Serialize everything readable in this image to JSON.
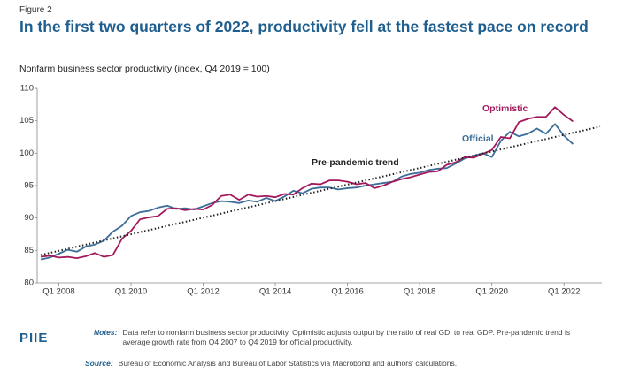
{
  "figure_label": "Figure 2",
  "notes_label": "Notes:",
  "notes": "Data refer to nonfarm business sector productivity. Optimistic adjusts output by the ratio of real GDI to real GDP. Pre-pandemic trend is average growth rate from Q4 2007 to Q4 2019 for official productivity.",
  "source_label": "Source:",
  "source": "Bureau of Economic Analysis and Bureau of Labor Statistics via Macrobond and authors' calculations.",
  "logo": "PIIE",
  "chart_data": {
    "type": "line",
    "title": "In the first two quarters of 2022, productivity fell at the fastest pace on record",
    "subtitle": "Nonfarm business sector productivity (index, Q4 2019 = 100)",
    "x": [
      2007.5,
      2007.75,
      2008,
      2008.25,
      2008.5,
      2008.75,
      2009,
      2009.25,
      2009.5,
      2009.75,
      2010,
      2010.25,
      2010.5,
      2010.75,
      2011,
      2011.25,
      2011.5,
      2011.75,
      2012,
      2012.25,
      2012.5,
      2012.75,
      2013,
      2013.25,
      2013.5,
      2013.75,
      2014,
      2014.25,
      2014.5,
      2014.75,
      2015,
      2015.25,
      2015.5,
      2015.75,
      2016,
      2016.25,
      2016.5,
      2016.75,
      2017,
      2017.25,
      2017.5,
      2017.75,
      2018,
      2018.25,
      2018.5,
      2018.75,
      2019,
      2019.25,
      2019.5,
      2019.75,
      2020,
      2020.25,
      2020.5,
      2020.75,
      2021,
      2021.25,
      2021.5,
      2021.75,
      2022,
      2022.25
    ],
    "series": [
      {
        "name": "Official",
        "color": "#3d6d99",
        "values": [
          83.6,
          83.9,
          84.5,
          85.1,
          84.8,
          85.6,
          85.9,
          86.5,
          87.9,
          88.8,
          90.3,
          90.9,
          91.1,
          91.6,
          91.9,
          91.4,
          91.5,
          91.3,
          91.8,
          92.3,
          92.6,
          92.5,
          92.3,
          92.7,
          92.5,
          93.1,
          92.6,
          93.3,
          94.2,
          93.8,
          94.5,
          94.7,
          94.7,
          94.4,
          94.6,
          94.7,
          95.0,
          95.2,
          95.4,
          95.6,
          96.4,
          96.8,
          97.0,
          97.4,
          97.6,
          97.7,
          98.4,
          99.2,
          99.6,
          100.0,
          99.4,
          101.9,
          103.3,
          102.6,
          103.0,
          103.8,
          103.0,
          104.5,
          102.7,
          101.4
        ]
      },
      {
        "name": "Optimistic",
        "color": "#a3195b",
        "values": [
          84.0,
          84.2,
          83.9,
          84.0,
          83.8,
          84.1,
          84.6,
          84.0,
          84.3,
          86.8,
          88.0,
          89.8,
          90.1,
          90.3,
          91.4,
          91.5,
          91.2,
          91.4,
          91.3,
          92.0,
          93.4,
          93.6,
          92.8,
          93.6,
          93.3,
          93.4,
          93.2,
          93.7,
          93.6,
          94.6,
          95.3,
          95.2,
          95.8,
          95.8,
          95.6,
          95.2,
          95.4,
          94.6,
          95.0,
          95.6,
          96.0,
          96.3,
          96.7,
          97.1,
          97.2,
          98.2,
          98.6,
          99.4,
          99.3,
          99.9,
          100.5,
          102.5,
          102.3,
          104.8,
          105.3,
          105.6,
          105.6,
          107.1,
          105.9,
          104.9
        ]
      },
      {
        "name": "Pre-pandemic trend",
        "color": "#222222",
        "dotted": true,
        "x": [
          2007.5,
          2023.0
        ],
        "values": [
          84.3,
          104.1
        ]
      }
    ],
    "xlim": [
      2007.4,
      2023.05
    ],
    "ylim": [
      80,
      110
    ],
    "xticks": [
      {
        "value": 2008,
        "label": "Q1 2008"
      },
      {
        "value": 2010,
        "label": "Q1 2010"
      },
      {
        "value": 2012,
        "label": "Q1 2012"
      },
      {
        "value": 2014,
        "label": "Q1 2014"
      },
      {
        "value": 2016,
        "label": "Q1 2016"
      },
      {
        "value": 2018,
        "label": "Q1 2018"
      },
      {
        "value": 2020,
        "label": "Q1 2020"
      },
      {
        "value": 2022,
        "label": "Q1 2022"
      }
    ],
    "yticks": [
      80,
      85,
      90,
      95,
      100,
      105,
      110
    ],
    "grid": false
  }
}
